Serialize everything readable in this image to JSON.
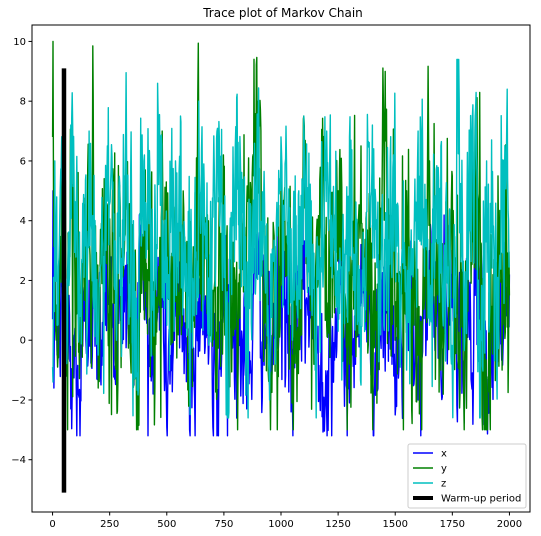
{
  "chart_data": {
    "type": "line",
    "title": "Trace plot of Markov Chain",
    "xlabel": "",
    "ylabel": "",
    "xlim": [
      -90,
      2090
    ],
    "ylim": [
      -5.75,
      10.55
    ],
    "x_ticks": [
      0,
      250,
      500,
      750,
      1000,
      1250,
      1500,
      1750,
      2000
    ],
    "x_tick_labels": [
      "0",
      "250",
      "500",
      "750",
      "1000",
      "1250",
      "1500",
      "1750",
      "2000"
    ],
    "y_ticks": [
      -4,
      -2,
      0,
      2,
      4,
      6,
      8,
      10
    ],
    "y_tick_labels": [
      "−4",
      "−2",
      "0",
      "2",
      "4",
      "6",
      "8",
      "10"
    ],
    "grid": false,
    "legend_position": "lower-right",
    "n_samples": 2000,
    "series": [
      {
        "name": "x",
        "color": "#0000ff",
        "summary": {
          "mean": 1.0,
          "approx_min": -3.2,
          "approx_max": 5.0
        },
        "x": [
          0,
          3,
          6,
          10,
          14,
          20,
          40,
          80,
          120,
          160,
          200,
          240,
          280,
          320,
          360,
          380,
          440,
          470,
          500,
          560,
          600,
          650,
          700,
          720,
          760,
          800,
          850,
          900,
          950,
          1000,
          1050,
          1100,
          1150,
          1200,
          1250,
          1300,
          1350,
          1400,
          1450,
          1500,
          1550,
          1600,
          1650,
          1700,
          1750,
          1800,
          1850,
          1900,
          1950,
          2000
        ],
        "values": [
          0.7,
          5.2,
          -1.6,
          3.5,
          0.3,
          -0.5,
          1.8,
          -2.3,
          -3.2,
          2.0,
          -1.0,
          4.0,
          -1.2,
          2.5,
          -0.6,
          4.2,
          -1.8,
          3.0,
          -2.9,
          1.5,
          -3.0,
          2.2,
          -2.2,
          -3.2,
          3.5,
          -0.5,
          -2.3,
          2.8,
          -1.4,
          1.8,
          -2.0,
          2.5,
          -0.8,
          -2.5,
          1.0,
          -2.1,
          3.2,
          -1.5,
          2.4,
          -2.5,
          1.2,
          -2.0,
          3.0,
          -1.2,
          2.2,
          -0.8,
          1.5,
          -2.0,
          0.2,
          2.2
        ]
      },
      {
        "name": "y",
        "color": "#008000",
        "summary": {
          "mean": 2.0,
          "approx_min": -3.0,
          "approx_max": 10.0
        },
        "x": [
          0,
          2,
          4,
          7,
          12,
          20,
          40,
          60,
          80,
          120,
          160,
          200,
          240,
          280,
          320,
          360,
          400,
          440,
          480,
          520,
          560,
          600,
          640,
          700,
          750,
          800,
          850,
          900,
          950,
          1000,
          1050,
          1100,
          1150,
          1175,
          1200,
          1250,
          1300,
          1350,
          1400,
          1450,
          1500,
          1550,
          1600,
          1650,
          1700,
          1750,
          1800,
          1850,
          1880,
          1900,
          1950,
          2000
        ],
        "values": [
          6.8,
          10.0,
          5.0,
          6.5,
          1.0,
          -0.3,
          6.8,
          -1.2,
          6.7,
          0.2,
          5.5,
          -1.6,
          4.5,
          -0.8,
          6.0,
          -1.0,
          4.0,
          -0.5,
          7.0,
          0.0,
          5.5,
          -1.5,
          6.5,
          -0.2,
          5.0,
          0.5,
          4.5,
          8.0,
          -1.5,
          5.5,
          -0.5,
          7.5,
          -1.0,
          8.1,
          0.5,
          5.0,
          -0.8,
          6.5,
          -1.5,
          7.0,
          0.0,
          5.0,
          -0.5,
          6.0,
          -1.0,
          5.5,
          -2.0,
          7.5,
          -2.5,
          -3.0,
          5.5,
          1.5
        ]
      },
      {
        "name": "z",
        "color": "#00bfbf",
        "summary": {
          "mean": 3.0,
          "approx_min": -2.6,
          "approx_max": 9.4
        },
        "x": [
          0,
          3,
          6,
          10,
          20,
          40,
          60,
          80,
          120,
          160,
          200,
          240,
          280,
          320,
          360,
          400,
          440,
          460,
          500,
          560,
          600,
          640,
          680,
          720,
          760,
          800,
          850,
          900,
          950,
          1000,
          1050,
          1100,
          1150,
          1200,
          1250,
          1300,
          1350,
          1400,
          1450,
          1500,
          1550,
          1600,
          1650,
          1700,
          1750,
          1770,
          1800,
          1850,
          1870,
          1900,
          1950,
          1990,
          2000
        ],
        "values": [
          -0.9,
          4.8,
          1.0,
          6.0,
          0.5,
          6.8,
          -0.2,
          7.2,
          0.8,
          7.0,
          -0.5,
          6.5,
          0.0,
          7.1,
          -1.3,
          6.0,
          1.0,
          8.6,
          0.5,
          7.5,
          -1.2,
          8.0,
          0.2,
          7.0,
          -2.5,
          6.5,
          0.5,
          7.2,
          -2.0,
          6.8,
          0.0,
          7.5,
          -1.0,
          7.0,
          0.3,
          6.8,
          -1.5,
          7.2,
          0.5,
          6.0,
          -1.0,
          7.0,
          0.5,
          6.5,
          -1.0,
          9.4,
          1.0,
          7.5,
          -2.6,
          6.0,
          0.5,
          8.4,
          2.5
        ]
      }
    ],
    "warmup": {
      "name": "Warm-up period",
      "color": "#000000",
      "x": 50,
      "y_from": -5.1,
      "y_to": 9.1
    }
  }
}
